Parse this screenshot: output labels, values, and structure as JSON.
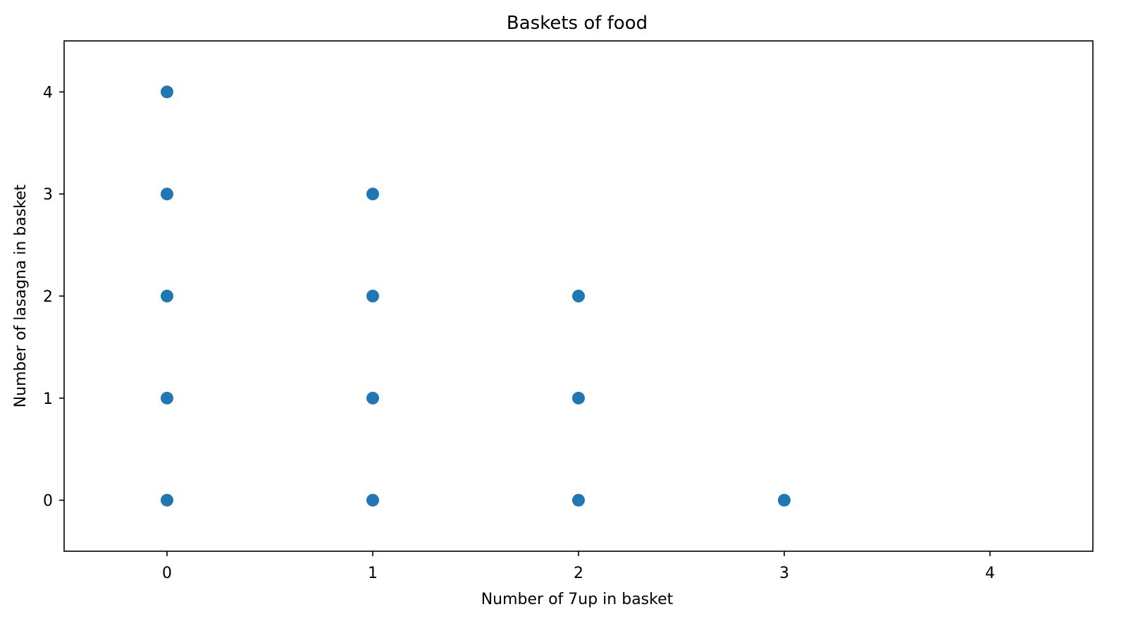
{
  "chart_data": {
    "type": "scatter",
    "title": "Baskets of food",
    "xlabel": "Number of 7up in basket",
    "ylabel": "Number of lasagna in basket",
    "xlim": [
      -0.5,
      4.5
    ],
    "ylim": [
      -0.5,
      4.5
    ],
    "xticks": [
      0,
      1,
      2,
      3,
      4
    ],
    "yticks": [
      0,
      1,
      2,
      3,
      4
    ],
    "grid": false,
    "marker_color": "#1f77b4",
    "points": [
      {
        "x": 0,
        "y": 4
      },
      {
        "x": 0,
        "y": 3
      },
      {
        "x": 0,
        "y": 2
      },
      {
        "x": 0,
        "y": 1
      },
      {
        "x": 0,
        "y": 0
      },
      {
        "x": 1,
        "y": 3
      },
      {
        "x": 1,
        "y": 2
      },
      {
        "x": 1,
        "y": 1
      },
      {
        "x": 1,
        "y": 0
      },
      {
        "x": 2,
        "y": 2
      },
      {
        "x": 2,
        "y": 1
      },
      {
        "x": 2,
        "y": 0
      },
      {
        "x": 3,
        "y": 0
      }
    ]
  }
}
